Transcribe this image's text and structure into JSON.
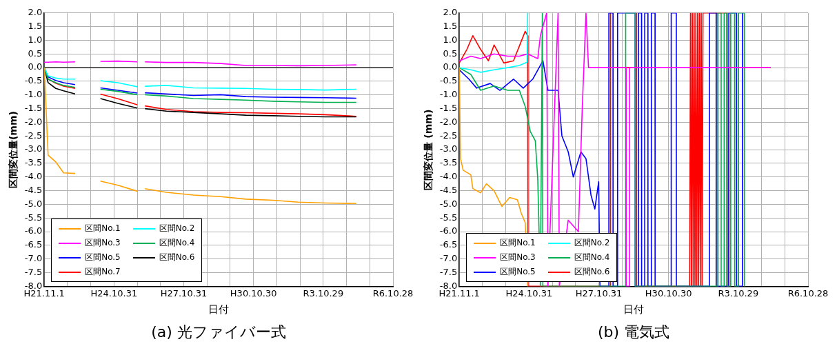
{
  "chart_data": [
    {
      "type": "line",
      "title": "(a) 光ファイバー式",
      "xlabel": "日付",
      "ylabel": "区間変位量(mm)",
      "grid": true,
      "legend": "bottom left",
      "marker": "none",
      "x": [
        "2009-11-01",
        "2010-01-01",
        "2010-05-01",
        "2010-09-01",
        "2011-03-01",
        "2011-09-01",
        "2012-04-01",
        "2013-01-01",
        "2013-11-01",
        "2014-01-01",
        "2014-03-01",
        "2015-02-01",
        "2016-04-01",
        "2017-06-01",
        "2018-07-01",
        "2019-09-01",
        "2020-10-01",
        "2021-12-01",
        "2023-04-01"
      ],
      "series": [
        {
          "name": "区間No.1",
          "color": "#ffa000",
          "values": [
            0,
            -3.2,
            -3.45,
            -3.85,
            -3.87,
            null,
            -4.15,
            -4.3,
            -4.52,
            null,
            -4.43,
            -4.56,
            -4.66,
            -4.72,
            -4.81,
            -4.85,
            -4.92,
            -4.95,
            -4.97
          ]
        },
        {
          "name": "区間No.2",
          "color": "#00ffff",
          "values": [
            0,
            -0.3,
            -0.38,
            -0.42,
            -0.42,
            null,
            -0.48,
            -0.55,
            -0.7,
            null,
            -0.68,
            -0.65,
            -0.74,
            -0.75,
            -0.76,
            -0.79,
            -0.8,
            -0.82,
            -0.79
          ]
        },
        {
          "name": "区間No.3",
          "color": "#ff00ff",
          "values": [
            0.2,
            0.2,
            0.21,
            0.2,
            0.21,
            null,
            0.23,
            0.24,
            0.21,
            null,
            0.21,
            0.19,
            0.19,
            0.15,
            0.08,
            0.08,
            0.07,
            0.08,
            0.1
          ]
        },
        {
          "name": "区間No.4",
          "color": "#00b050",
          "values": [
            0,
            -0.42,
            -0.55,
            -0.65,
            -0.72,
            null,
            -0.79,
            -0.87,
            -0.99,
            null,
            -0.99,
            -1.04,
            -1.13,
            -1.16,
            -1.19,
            -1.23,
            -1.25,
            -1.27,
            -1.27
          ]
        },
        {
          "name": "区間No.5",
          "color": "#0000ff",
          "values": [
            0,
            -0.34,
            -0.47,
            -0.55,
            -0.62,
            null,
            -0.74,
            -0.83,
            -0.93,
            null,
            -0.92,
            -0.96,
            -1.02,
            -0.99,
            -1.06,
            -1.08,
            -1.09,
            -1.1,
            -1.12
          ]
        },
        {
          "name": "区間No.6",
          "color": "#000000",
          "values": [
            0,
            -0.55,
            -0.76,
            -0.85,
            -0.96,
            null,
            -1.13,
            -1.31,
            -1.48,
            null,
            -1.5,
            -1.59,
            -1.64,
            -1.69,
            -1.74,
            -1.76,
            -1.78,
            -1.8,
            -1.8
          ]
        },
        {
          "name": "区間No.7",
          "color": "#ff0000",
          "values": [
            0,
            -0.42,
            -0.57,
            -0.68,
            -0.76,
            null,
            -0.97,
            -1.14,
            -1.36,
            null,
            -1.4,
            -1.53,
            -1.61,
            -1.64,
            -1.65,
            -1.67,
            -1.69,
            -1.72,
            -1.78
          ]
        }
      ],
      "ref_lines": [
        {
          "axis": "y",
          "value": 0,
          "color": "#000000"
        }
      ],
      "xlim": [
        "2009-11-01",
        "2024-10-28"
      ],
      "xticks": [
        {
          "value": "2009-11-01",
          "label": "H21.11.1"
        },
        {
          "value": "2010-11-01",
          "label": null
        },
        {
          "value": "2011-11-01",
          "label": null
        },
        {
          "value": "2012-10-31",
          "label": "H24.10.31"
        },
        {
          "value": "2013-10-31",
          "label": null
        },
        {
          "value": "2014-10-31",
          "label": null
        },
        {
          "value": "2015-10-31",
          "label": "H27.10.31"
        },
        {
          "value": "2016-10-30",
          "label": null
        },
        {
          "value": "2017-10-30",
          "label": null
        },
        {
          "value": "2018-10-30",
          "label": "H30.10.30"
        },
        {
          "value": "2019-10-30",
          "label": null
        },
        {
          "value": "2020-10-29",
          "label": null
        },
        {
          "value": "2021-10-29",
          "label": "R3.10.29"
        },
        {
          "value": "2022-10-29",
          "label": null
        },
        {
          "value": "2023-10-29",
          "label": null
        },
        {
          "value": "2024-10-28",
          "label": "R6.10.28"
        }
      ],
      "ylim": [
        -8,
        2
      ],
      "yticks": [
        {
          "value": -8,
          "label": "-8.0"
        },
        {
          "value": -7.5,
          "label": "-7.5"
        },
        {
          "value": -7,
          "label": "-7.0"
        },
        {
          "value": -6.5,
          "label": "-6.5"
        },
        {
          "value": -6,
          "label": "-6.0"
        },
        {
          "value": -5.5,
          "label": "-5.5"
        },
        {
          "value": -5,
          "label": "-5.0"
        },
        {
          "value": -4.5,
          "label": "-4.5"
        },
        {
          "value": -4,
          "label": "-4.0"
        },
        {
          "value": -3.5,
          "label": "-3.5"
        },
        {
          "value": -3,
          "label": "-3.0"
        },
        {
          "value": -2.5,
          "label": "-2.5"
        },
        {
          "value": -2,
          "label": "-2.0"
        },
        {
          "value": -1.5,
          "label": "-1.5"
        },
        {
          "value": -1,
          "label": "-1.0"
        },
        {
          "value": -0.5,
          "label": "-0.5"
        },
        {
          "value": 0,
          "label": "0.0"
        },
        {
          "value": 0.5,
          "label": "0.5"
        },
        {
          "value": 1,
          "label": "1.0"
        },
        {
          "value": 1.5,
          "label": "1.5"
        },
        {
          "value": 2,
          "label": "2.0"
        }
      ]
    },
    {
      "type": "line",
      "title": "(b) 電気式",
      "xlabel": "日付",
      "ylabel": "区間変位量 (mm)",
      "grid": true,
      "legend": "bottom left",
      "marker": "none",
      "series": [
        {
          "name": "区間No.1",
          "color": "#ffa000",
          "x": [
            "2009-11-01",
            "2009-11-20",
            "2010-01-01",
            "2010-05-01",
            "2010-06-01",
            "2010-10-01",
            "2011-01-01",
            "2011-05-01",
            "2011-09-01",
            "2012-01-01",
            "2012-05-01",
            "2012-07-01",
            "2012-09-01",
            "2012-10-09"
          ],
          "values": [
            0,
            -3.33,
            -3.75,
            -3.92,
            -4.42,
            -4.58,
            -4.25,
            -4.5,
            -5.08,
            -4.75,
            -4.83,
            -5.33,
            -5.67,
            -8
          ]
        },
        {
          "name": "区間No.2",
          "color": "#00ffff",
          "x": [
            "2009-11-01",
            "2010-05-01",
            "2010-10-01",
            "2011-05-01",
            "2011-12-01",
            "2012-06-01",
            "2012-10-01",
            "2012-10-09"
          ],
          "values": [
            0,
            -0.08,
            -0.17,
            -0.08,
            0,
            0.08,
            0.2,
            2
          ]
        },
        {
          "name": "区間No.3",
          "color": "#ff00ff",
          "x": [
            "2009-11-01",
            "2010-05-01",
            "2010-10-01",
            "2011-05-01",
            "2011-12-01",
            "2012-06-01",
            "2012-10-09",
            "2013-03-17",
            "2013-04-27",
            "2013-08-04",
            "2013-08-24",
            "2014-01-30",
            "2014-02-19",
            "2014-07-08",
            "2014-12-15",
            "2015-02-13",
            "2015-04-13",
            "2015-05-23",
            "2017-01-02",
            "2017-01-03",
            "2017-02-21",
            "2017-02-22",
            "2023-03-21"
          ],
          "values": [
            0.25,
            0.42,
            0.33,
            0.5,
            0.42,
            0.42,
            0.5,
            0.33,
            1.17,
            2,
            -8,
            2,
            -8,
            -5.58,
            -6,
            -1.5,
            2,
            0,
            0,
            -8,
            -8,
            0,
            0
          ]
        },
        {
          "name": "区間No.4",
          "color": "#00b050",
          "x": [
            "2009-11-01",
            "2010-05-01",
            "2010-10-01",
            "2011-05-01",
            "2011-12-01",
            "2012-06-01",
            "2012-09-01",
            "2012-11-19",
            "2013-02-06",
            "2013-03-17",
            "2013-04-27",
            "2013-05-28",
            "2013-06-05",
            "2016-12-25",
            "2016-12-26",
            "2017-05-24",
            "2017-05-25",
            "2020-12-14",
            "2020-12-15",
            "2021-02-01",
            "2021-02-02",
            "2021-03-20",
            "2021-03-21",
            "2021-05-10",
            "2021-05-11",
            "2021-07-01",
            "2021-07-02",
            "2021-09-01",
            "2021-09-02",
            "2021-11-01",
            "2021-11-02",
            "2022-02-01",
            "2022-02-02"
          ],
          "values": [
            0,
            -0.25,
            -0.83,
            -0.67,
            -0.83,
            -0.83,
            -1.42,
            -2.33,
            -2.67,
            -4.08,
            -8,
            2,
            -8,
            -8,
            2,
            2,
            -8,
            -8,
            2,
            2,
            -8,
            -8,
            2,
            2,
            -8,
            -8,
            2,
            2,
            -8,
            -8,
            2,
            2,
            -8
          ]
        },
        {
          "name": "区間No.5",
          "color": "#0000ff",
          "x": [
            "2009-11-01",
            "2010-04-01",
            "2010-08-01",
            "2011-03-01",
            "2011-08-01",
            "2012-03-01",
            "2012-08-01",
            "2012-12-28",
            "2013-06-06",
            "2013-08-24",
            "2014-01-30",
            "2014-03-31",
            "2014-07-08",
            "2014-09-26",
            "2015-01-23",
            "2015-04-13",
            "2015-07-01",
            "2015-08-30",
            "2015-10-29",
            "2015-11-18",
            "2016-04-05",
            "2016-04-06",
            "2016-06-10",
            "2016-06-11",
            "2016-08-20",
            "2016-08-21",
            "2017-05-24",
            "2017-05-25",
            "2017-07-15",
            "2017-07-16",
            "2017-09-01",
            "2017-09-02",
            "2017-10-20",
            "2017-10-21",
            "2017-12-10",
            "2017-12-11",
            "2018-02-01",
            "2018-02-02",
            "2018-04-01",
            "2018-04-02",
            "2018-12-10",
            "2018-12-11",
            "2019-03-01",
            "2019-03-02",
            "2020-08-01",
            "2020-08-02",
            "2020-11-25",
            "2020-11-26",
            "2021-06-01",
            "2021-06-02",
            "2021-10-01",
            "2021-10-02",
            "2022-01-01",
            "2022-01-02"
          ],
          "values": [
            -0.08,
            -0.42,
            -0.75,
            -0.58,
            -0.83,
            -0.42,
            -0.75,
            -0.42,
            0.25,
            -0.83,
            -0.83,
            -2.5,
            -3.08,
            -4,
            -3.08,
            -3.33,
            -4.67,
            -5.17,
            -4.17,
            -8,
            -8,
            2,
            2,
            -8,
            -8,
            2,
            2,
            -8,
            -8,
            2,
            2,
            -8,
            -8,
            2,
            2,
            -8,
            -8,
            2,
            2,
            -8,
            -8,
            2,
            2,
            -8,
            -8,
            2,
            2,
            -8,
            -8,
            2,
            2,
            -8,
            -8,
            2
          ]
        },
        {
          "name": "区間No.6",
          "color": "#ff0000",
          "x": [
            "2009-11-01",
            "2010-03-01",
            "2010-06-01",
            "2010-10-01",
            "2011-02-01",
            "2011-05-01",
            "2011-10-01",
            "2012-03-01",
            "2012-09-01",
            "2012-10-09",
            "2012-10-15",
            "2016-05-01",
            "2016-05-02",
            "2016-05-03",
            "2017-06-14",
            "2017-06-15",
            "2017-06-16",
            "2019-09-26",
            "2019-10-10",
            "2019-10-24",
            "2019-11-07",
            "2019-11-21",
            "2019-12-05",
            "2019-12-19",
            "2020-01-02",
            "2020-01-16",
            "2020-01-30",
            "2020-02-13",
            "2020-02-27",
            "2020-03-12",
            "2020-03-26",
            "2020-04-09",
            "2020-04-23",
            "2021-05-01",
            "2021-05-02",
            "2021-06-01",
            "2021-06-02",
            "2023-03-21"
          ],
          "values": [
            0.17,
            0.67,
            1.17,
            0.67,
            0.25,
            0.83,
            0.17,
            0.25,
            1.33,
            1.17,
            -8,
            -8,
            2,
            0,
            0,
            2,
            -8,
            -8,
            2,
            -8,
            2,
            -8,
            2,
            -8,
            2,
            -8,
            2,
            -8,
            2,
            -8,
            2,
            -8,
            2,
            2,
            -8,
            -8,
            0,
            0
          ]
        }
      ],
      "xlim": [
        "2009-11-01",
        "2024-10-28"
      ],
      "xticks": [
        {
          "value": "2009-11-01",
          "label": "H21.11.1"
        },
        {
          "value": "2010-11-01",
          "label": null
        },
        {
          "value": "2011-11-01",
          "label": null
        },
        {
          "value": "2012-10-31",
          "label": "H24.10.31"
        },
        {
          "value": "2013-10-31",
          "label": null
        },
        {
          "value": "2014-10-31",
          "label": null
        },
        {
          "value": "2015-10-31",
          "label": "H27.10.31"
        },
        {
          "value": "2016-10-30",
          "label": null
        },
        {
          "value": "2017-10-30",
          "label": null
        },
        {
          "value": "2018-10-30",
          "label": "H30.10.30"
        },
        {
          "value": "2019-10-30",
          "label": null
        },
        {
          "value": "2020-10-29",
          "label": null
        },
        {
          "value": "2021-10-29",
          "label": "R3.10.29"
        },
        {
          "value": "2022-10-29",
          "label": null
        },
        {
          "value": "2023-10-29",
          "label": null
        },
        {
          "value": "2024-10-28",
          "label": "R6.10.28"
        }
      ],
      "ylim": [
        -8,
        2
      ],
      "yticks": [
        {
          "value": -8,
          "label": "-8.0"
        },
        {
          "value": -7.5,
          "label": "-7.5"
        },
        {
          "value": -7,
          "label": "-7.0"
        },
        {
          "value": -6.5,
          "label": "-6.5"
        },
        {
          "value": -6,
          "label": "-6.0"
        },
        {
          "value": -5.5,
          "label": "-5.5"
        },
        {
          "value": -5,
          "label": "-5.0"
        },
        {
          "value": -4.5,
          "label": "-4.5"
        },
        {
          "value": -4,
          "label": "-4.0"
        },
        {
          "value": -3.5,
          "label": "-3.5"
        },
        {
          "value": -3,
          "label": "-3.0"
        },
        {
          "value": -2.5,
          "label": "-2.5"
        },
        {
          "value": -2,
          "label": "-2.0"
        },
        {
          "value": -1.5,
          "label": "-1.5"
        },
        {
          "value": -1,
          "label": "-1.0"
        },
        {
          "value": -0.5,
          "label": "-0.5"
        },
        {
          "value": 0,
          "label": "0.0"
        },
        {
          "value": 0.5,
          "label": "0.5"
        },
        {
          "value": 1,
          "label": "1.0"
        },
        {
          "value": 1.5,
          "label": "1.5"
        },
        {
          "value": 2,
          "label": "2.0"
        }
      ]
    }
  ]
}
